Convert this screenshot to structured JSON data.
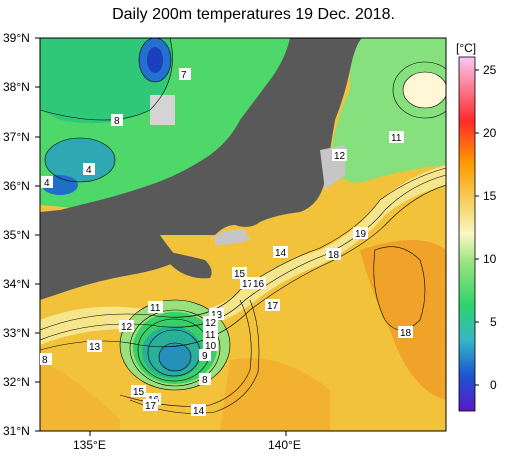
{
  "title": "Daily 200m temperatures 19 Dec. 2018.",
  "lat_labels": [
    "39°N",
    "38°N",
    "37°N",
    "36°N",
    "35°N",
    "34°N",
    "33°N",
    "32°N",
    "31°N"
  ],
  "lon_labels": [
    "135°E",
    "140°E"
  ],
  "colorbar": {
    "unit": "[°C]",
    "ticks": [
      "25",
      "20",
      "15",
      "10",
      "5",
      "0"
    ],
    "stops": [
      "#f7c8f2",
      "#ff2a2a",
      "#ff9a00",
      "#f5d56a",
      "#fbf7c4",
      "#9be37f",
      "#2ed36b",
      "#35b6c7",
      "#1c55d0",
      "#5b18c9"
    ]
  },
  "contour_labels": [
    {
      "id": "c-7",
      "v": "7"
    },
    {
      "id": "c-8a",
      "v": "8"
    },
    {
      "id": "c-4a",
      "v": "4"
    },
    {
      "id": "c-4b",
      "v": "4"
    },
    {
      "id": "c-12a",
      "v": "12"
    },
    {
      "id": "c-11a",
      "v": "11"
    },
    {
      "id": "c-19",
      "v": "19"
    },
    {
      "id": "c-18a",
      "v": "18"
    },
    {
      "id": "c-14a",
      "v": "14"
    },
    {
      "id": "c-15a",
      "v": "15"
    },
    {
      "id": "c-17a",
      "v": "17"
    },
    {
      "id": "c-16a",
      "v": "16"
    },
    {
      "id": "c-17b",
      "v": "17"
    },
    {
      "id": "c-18b",
      "v": "18"
    },
    {
      "id": "c-11b",
      "v": "11"
    },
    {
      "id": "c-12b",
      "v": "12"
    },
    {
      "id": "c-13a",
      "v": "13"
    },
    {
      "id": "c-13b",
      "v": "13"
    },
    {
      "id": "c-12c",
      "v": "12"
    },
    {
      "id": "c-11c",
      "v": "11"
    },
    {
      "id": "c-10",
      "v": "10"
    },
    {
      "id": "c-9",
      "v": "9"
    },
    {
      "id": "c-8b",
      "v": "8"
    },
    {
      "id": "c-8c",
      "v": "8"
    },
    {
      "id": "c-15b",
      "v": "15"
    },
    {
      "id": "c-16b",
      "v": "16"
    },
    {
      "id": "c-17c",
      "v": "17"
    },
    {
      "id": "c-14b",
      "v": "14"
    }
  ]
}
